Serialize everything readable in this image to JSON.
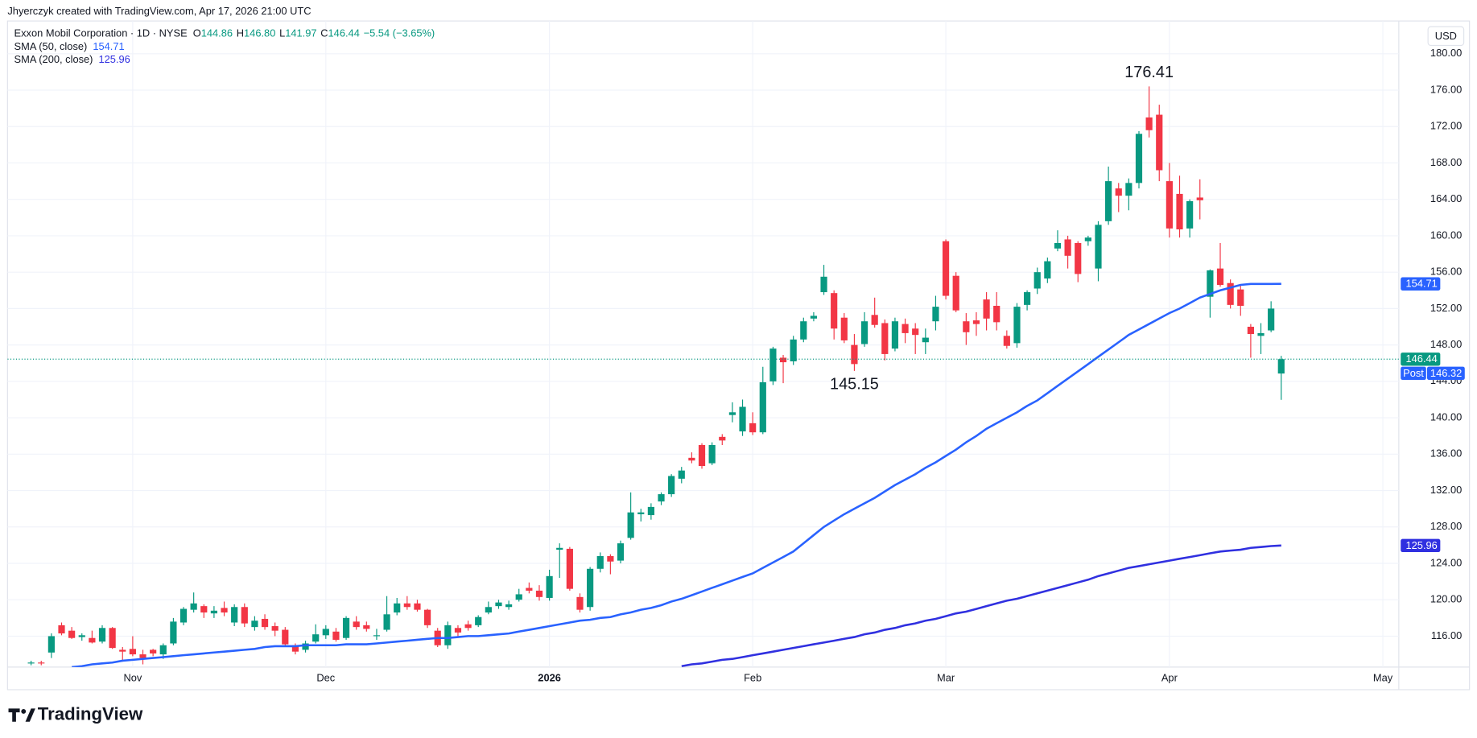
{
  "chart_data": {
    "type": "candlestick",
    "header": "Jhyerczyk created with TradingView.com, Apr 17, 2026 21:00 UTC",
    "symbol": "Exxon Mobil Corporation · 1D · NYSE",
    "ohlc_letters": [
      "O",
      "H",
      "L",
      "C"
    ],
    "last_ohlc_labels": [
      "144.86",
      "146.80",
      "141.97",
      "146.44"
    ],
    "change": "−5.54 (−3.65%)",
    "currency": "USD",
    "brand": "TradingView",
    "up_color": "#089981",
    "down_color": "#f23645",
    "categories": [
      null,
      null,
      null,
      null,
      null,
      null,
      null,
      null,
      null,
      null,
      "Nov",
      null,
      null,
      null,
      null,
      null,
      null,
      null,
      null,
      null,
      null,
      null,
      null,
      null,
      null,
      null,
      null,
      null,
      null,
      "Dec",
      null,
      null,
      null,
      null,
      null,
      null,
      null,
      null,
      null,
      null,
      null,
      null,
      null,
      null,
      null,
      null,
      null,
      null,
      null,
      null,
      null,
      "2026",
      null,
      null,
      null,
      null,
      null,
      null,
      null,
      null,
      null,
      null,
      null,
      null,
      null,
      null,
      null,
      null,
      null,
      null,
      null,
      "Feb",
      null,
      null,
      null,
      null,
      null,
      null,
      null,
      null,
      null,
      null,
      null,
      null,
      null,
      null,
      null,
      null,
      null,
      null,
      "Mar",
      null,
      null,
      null,
      null,
      null,
      null,
      null,
      null,
      null,
      null,
      null,
      null,
      null,
      null,
      null,
      null,
      null,
      null,
      null,
      null,
      null,
      "Apr",
      null,
      null,
      null,
      null,
      null,
      null,
      null,
      null,
      null,
      null,
      null,
      null,
      null,
      null,
      null,
      null,
      null,
      null,
      null,
      null,
      "May"
    ],
    "open": [
      113.0,
      113.1,
      114.2,
      117.2,
      116.6,
      115.9,
      115.8,
      115.4,
      116.9,
      114.5,
      114.6,
      114.0,
      114.5,
      114.0,
      115.2,
      117.5,
      118.9,
      119.3,
      118.5,
      119.1,
      117.5,
      119.2,
      117.0,
      117.9,
      117.1,
      116.7,
      115.0,
      114.5,
      115.4,
      116.1,
      116.5,
      115.8,
      117.6,
      117.2,
      116.0,
      116.7,
      118.6,
      119.6,
      119.6,
      118.9,
      116.6,
      115.0,
      116.9,
      117.3,
      117.2,
      118.6,
      119.3,
      119.2,
      120.0,
      121.3,
      121.0,
      120.2,
      125.5,
      125.6,
      120.3,
      119.2,
      123.4,
      124.8,
      124.3,
      126.8,
      129.4,
      129.3,
      130.8,
      131.6,
      133.3,
      135.6,
      137.0,
      135.0,
      137.9,
      140.3,
      138.5,
      139.4,
      138.4,
      144.0,
      146.6,
      146.2,
      148.6,
      150.9,
      153.8,
      153.7,
      151.0,
      148.0,
      148.1,
      151.3,
      150.4,
      147.6,
      150.3,
      149.8,
      148.3,
      150.6,
      159.4,
      155.6,
      150.6,
      150.7,
      153.0,
      152.3,
      149.0,
      148.2,
      152.4,
      154.2,
      155.3,
      158.6,
      159.6,
      159.2,
      159.4,
      156.4,
      161.6,
      165.2,
      164.4,
      165.8,
      173.0,
      173.3,
      166.0,
      164.6,
      160.8,
      164.2,
      153.3,
      156.4,
      154.8,
      154.1,
      150.0,
      149.0,
      149.6,
      144.86,
      null,
      null,
      null,
      null,
      null,
      null,
      null,
      null,
      null,
      null
    ],
    "high": [
      113.3,
      113.3,
      116.3,
      117.5,
      117.0,
      116.3,
      116.6,
      117.2,
      117.0,
      114.8,
      116.0,
      114.5,
      114.6,
      115.2,
      118.0,
      119.2,
      120.8,
      119.5,
      119.3,
      119.8,
      119.5,
      119.6,
      118.2,
      118.4,
      117.5,
      117.0,
      115.2,
      115.5,
      117.3,
      117.2,
      116.9,
      118.2,
      118.2,
      117.6,
      116.8,
      120.4,
      120.2,
      120.4,
      120.0,
      119.0,
      116.9,
      117.6,
      117.2,
      117.7,
      118.3,
      119.8,
      120.0,
      119.9,
      121.2,
      121.9,
      121.6,
      123.3,
      126.2,
      125.8,
      120.7,
      123.6,
      125.2,
      125.0,
      126.5,
      131.8,
      130.0,
      130.6,
      131.8,
      133.8,
      134.6,
      136.2,
      137.2,
      137.3,
      138.2,
      141.7,
      142.0,
      140.6,
      145.6,
      147.8,
      146.9,
      149.0,
      151.0,
      151.6,
      156.8,
      154.0,
      151.5,
      149.2,
      151.6,
      153.2,
      150.8,
      151.0,
      150.9,
      150.4,
      149.8,
      153.4,
      159.6,
      156.0,
      151.5,
      151.6,
      153.8,
      153.8,
      149.6,
      152.6,
      154.0,
      156.5,
      157.6,
      160.6,
      160.0,
      159.4,
      160.0,
      161.6,
      167.6,
      165.8,
      166.3,
      171.5,
      176.41,
      174.4,
      168.0,
      166.6,
      164.0,
      166.2,
      156.3,
      159.2,
      155.2,
      154.6,
      150.3,
      150.4,
      152.8,
      146.8,
      null,
      null,
      null,
      null,
      null,
      null,
      null,
      null,
      null,
      null
    ],
    "low": [
      112.8,
      112.8,
      113.6,
      116.1,
      115.7,
      115.5,
      115.2,
      115.2,
      114.6,
      113.2,
      113.8,
      112.9,
      113.8,
      113.5,
      115.0,
      117.2,
      118.6,
      118.0,
      118.0,
      118.2,
      117.1,
      117.0,
      116.6,
      116.7,
      116.0,
      114.8,
      114.0,
      114.2,
      115.2,
      115.7,
      115.4,
      115.6,
      116.7,
      116.5,
      115.6,
      116.5,
      118.3,
      118.9,
      118.7,
      116.9,
      114.8,
      114.6,
      116.0,
      116.6,
      117.0,
      118.4,
      119.0,
      118.9,
      119.8,
      120.7,
      119.9,
      119.9,
      122.4,
      121.0,
      118.6,
      118.8,
      123.0,
      122.8,
      124.0,
      126.6,
      128.6,
      128.8,
      130.4,
      131.3,
      132.8,
      135.0,
      134.4,
      134.8,
      137.0,
      139.5,
      138.0,
      138.1,
      138.2,
      143.6,
      143.8,
      145.8,
      148.3,
      150.6,
      153.5,
      148.6,
      148.2,
      145.15,
      147.8,
      149.9,
      146.3,
      147.3,
      148.2,
      147.0,
      147.0,
      149.6,
      153.0,
      151.6,
      148.0,
      149.0,
      149.6,
      149.6,
      147.6,
      147.7,
      151.8,
      153.6,
      154.8,
      158.3,
      156.4,
      154.9,
      158.9,
      155.0,
      161.2,
      162.6,
      162.8,
      165.2,
      170.8,
      166.0,
      159.8,
      159.8,
      159.8,
      161.8,
      151.0,
      154.4,
      152.0,
      151.2,
      146.6,
      147.0,
      149.4,
      141.97,
      null,
      null,
      null,
      null,
      null,
      null,
      null,
      null,
      null,
      null
    ],
    "close": [
      113.1,
      113.0,
      116.0,
      116.3,
      115.8,
      116.1,
      115.3,
      116.9,
      114.7,
      114.3,
      114.0,
      113.6,
      114.1,
      115.0,
      117.6,
      119.0,
      119.6,
      118.6,
      118.8,
      118.6,
      119.2,
      117.4,
      117.7,
      117.0,
      116.6,
      115.1,
      114.3,
      115.2,
      116.2,
      116.8,
      115.6,
      118.0,
      117.0,
      116.8,
      116.1,
      118.4,
      119.6,
      119.2,
      118.9,
      117.2,
      115.0,
      117.2,
      116.4,
      116.9,
      118.1,
      119.2,
      119.7,
      119.5,
      120.6,
      121.0,
      120.3,
      122.6,
      125.7,
      121.2,
      118.9,
      123.4,
      124.8,
      124.2,
      126.2,
      129.6,
      129.6,
      130.2,
      131.6,
      133.6,
      134.2,
      135.3,
      134.7,
      137.0,
      137.5,
      140.6,
      141.2,
      138.4,
      143.9,
      147.6,
      146.1,
      148.6,
      150.6,
      151.2,
      155.5,
      149.8,
      148.5,
      145.9,
      150.6,
      150.2,
      147.0,
      150.6,
      149.3,
      149.1,
      148.8,
      152.2,
      153.4,
      151.8,
      149.4,
      150.3,
      150.9,
      150.5,
      147.9,
      152.2,
      153.8,
      156.0,
      157.2,
      159.2,
      157.8,
      155.8,
      159.8,
      161.2,
      166.0,
      164.4,
      165.8,
      171.2,
      171.6,
      167.2,
      160.8,
      160.7,
      163.8,
      163.9,
      156.2,
      154.6,
      152.4,
      152.3,
      149.2,
      149.3,
      152.0,
      146.44,
      null,
      null,
      null,
      null,
      null,
      null,
      null,
      null,
      null,
      null
    ],
    "series": [
      {
        "name": "SMA (50, close)",
        "color": "#2962ff",
        "values": [
          null,
          null,
          null,
          null,
          112.6,
          112.7,
          112.9,
          113.0,
          113.1,
          113.3,
          113.4,
          113.5,
          113.6,
          113.7,
          113.8,
          113.9,
          114.0,
          114.1,
          114.2,
          114.3,
          114.4,
          114.5,
          114.6,
          114.8,
          114.9,
          114.9,
          114.9,
          115.0,
          115.0,
          115.0,
          115.0,
          115.1,
          115.1,
          115.1,
          115.2,
          115.3,
          115.4,
          115.5,
          115.6,
          115.7,
          115.8,
          115.8,
          115.9,
          116.0,
          116.0,
          116.1,
          116.2,
          116.3,
          116.5,
          116.7,
          116.9,
          117.1,
          117.3,
          117.5,
          117.7,
          117.8,
          118.0,
          118.1,
          118.4,
          118.6,
          118.9,
          119.1,
          119.4,
          119.8,
          120.1,
          120.5,
          120.9,
          121.3,
          121.7,
          122.1,
          122.5,
          122.9,
          123.5,
          124.1,
          124.7,
          125.3,
          126.2,
          127.1,
          128.0,
          128.7,
          129.4,
          130.0,
          130.6,
          131.2,
          131.9,
          132.6,
          133.2,
          133.8,
          134.5,
          135.1,
          135.8,
          136.5,
          137.3,
          138.0,
          138.8,
          139.4,
          140.0,
          140.6,
          141.3,
          141.9,
          142.7,
          143.5,
          144.3,
          145.1,
          145.9,
          146.7,
          147.5,
          148.3,
          149.1,
          149.7,
          150.3,
          150.9,
          151.5,
          152.0,
          152.6,
          153.2,
          153.6,
          154.0,
          154.3,
          154.6,
          154.7,
          154.7,
          154.7,
          154.71,
          null,
          null,
          null,
          null,
          null,
          null,
          null,
          null,
          null,
          null
        ]
      },
      {
        "name": "SMA (200, close)",
        "color": "#3030e0",
        "values": [
          null,
          null,
          null,
          null,
          null,
          null,
          null,
          null,
          null,
          null,
          null,
          null,
          null,
          null,
          null,
          null,
          null,
          null,
          null,
          null,
          null,
          null,
          null,
          null,
          null,
          null,
          null,
          null,
          null,
          null,
          null,
          null,
          null,
          null,
          null,
          null,
          null,
          null,
          null,
          null,
          null,
          null,
          null,
          null,
          null,
          null,
          null,
          null,
          null,
          null,
          null,
          null,
          null,
          null,
          null,
          null,
          null,
          null,
          null,
          null,
          null,
          null,
          null,
          null,
          112.7,
          112.9,
          113.0,
          113.2,
          113.4,
          113.5,
          113.7,
          113.9,
          114.1,
          114.3,
          114.5,
          114.7,
          114.9,
          115.1,
          115.3,
          115.5,
          115.7,
          115.9,
          116.2,
          116.4,
          116.7,
          116.9,
          117.2,
          117.4,
          117.7,
          117.9,
          118.2,
          118.5,
          118.7,
          119.0,
          119.3,
          119.6,
          119.9,
          120.1,
          120.4,
          120.7,
          121.0,
          121.3,
          121.6,
          121.9,
          122.2,
          122.6,
          122.9,
          123.2,
          123.5,
          123.7,
          123.9,
          124.1,
          124.3,
          124.5,
          124.7,
          124.9,
          125.1,
          125.3,
          125.4,
          125.5,
          125.7,
          125.8,
          125.9,
          125.96,
          null,
          null,
          null,
          null,
          null,
          null,
          null,
          null,
          null,
          null
        ]
      }
    ],
    "ylim": [
      112.6,
      183.6
    ],
    "yticks": [
      {
        "value": 116,
        "label": "116.00"
      },
      {
        "value": 120,
        "label": "120.00"
      },
      {
        "value": 124,
        "label": "124.00"
      },
      {
        "value": 128,
        "label": "128.00"
      },
      {
        "value": 132,
        "label": "132.00"
      },
      {
        "value": 136,
        "label": "136.00"
      },
      {
        "value": 140,
        "label": "140.00"
      },
      {
        "value": 144,
        "label": "144.00"
      },
      {
        "value": 148,
        "label": "148.00"
      },
      {
        "value": 152,
        "label": "152.00"
      },
      {
        "value": 156,
        "label": "156.00"
      },
      {
        "value": 160,
        "label": "160.00"
      },
      {
        "value": 164,
        "label": "164.00"
      },
      {
        "value": 168,
        "label": "168.00"
      },
      {
        "value": 172,
        "label": "172.00"
      },
      {
        "value": 176,
        "label": "176.00"
      },
      {
        "value": 180,
        "label": "180.00"
      }
    ],
    "grid": true,
    "annotations": {
      "high": 176.41,
      "low": 145.15
    },
    "price_tags": [
      {
        "value": 154.71,
        "color": "#2962ff"
      },
      {
        "value": 146.44,
        "color": "#089981"
      },
      {
        "value": 146.32,
        "color": "#2962ff",
        "prefix": "Post"
      },
      {
        "value": 125.96,
        "color": "#3030e0"
      }
    ]
  }
}
